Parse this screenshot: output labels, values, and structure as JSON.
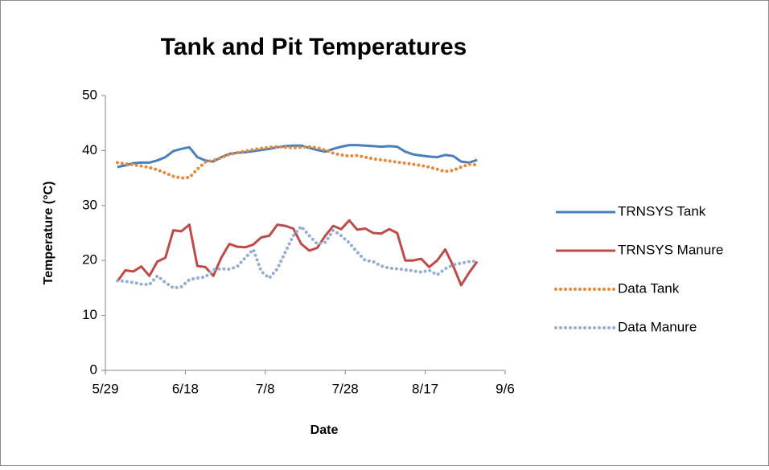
{
  "chart_data": {
    "type": "line",
    "title": "Tank and Pit Temperatures",
    "x_label": "Date",
    "y_label": "Temperature (°C)",
    "x": [
      "6/1",
      "6/3",
      "6/5",
      "6/7",
      "6/9",
      "6/11",
      "6/13",
      "6/15",
      "6/17",
      "6/19",
      "6/21",
      "6/23",
      "6/25",
      "6/27",
      "6/29",
      "7/1",
      "7/3",
      "7/5",
      "7/7",
      "7/9",
      "7/11",
      "7/13",
      "7/15",
      "7/17",
      "7/19",
      "7/21",
      "7/23",
      "7/25",
      "7/27",
      "7/29",
      "7/31",
      "8/2",
      "8/4",
      "8/6",
      "8/8",
      "8/10",
      "8/12",
      "8/14",
      "8/16",
      "8/18",
      "8/20",
      "8/22",
      "8/24",
      "8/26",
      "8/28",
      "8/30"
    ],
    "series": [
      {
        "name": "TRNSYS Tank",
        "color": "#4a7ebb",
        "style": "solid",
        "values": [
          37,
          37.3,
          37.7,
          37.8,
          37.8,
          38.2,
          38.8,
          39.9,
          40.3,
          40.6,
          38.8,
          38.2,
          38,
          38.8,
          39.4,
          39.6,
          39.7,
          39.9,
          40.1,
          40.3,
          40.6,
          40.8,
          40.9,
          40.9,
          40.5,
          40.1,
          39.8,
          40.3,
          40.7,
          41,
          41,
          40.9,
          40.8,
          40.7,
          40.8,
          40.7,
          39.8,
          39.3,
          39.1,
          38.9,
          38.8,
          39.2,
          39,
          38,
          37.8,
          38.3
        ]
      },
      {
        "name": "TRNSYS Manure",
        "color": "#be4b48",
        "style": "solid",
        "values": [
          16.2,
          18.2,
          18,
          18.9,
          17.2,
          19.8,
          20.5,
          25.5,
          25.3,
          26.5,
          19,
          18.8,
          17.2,
          20.5,
          23,
          22.5,
          22.4,
          22.9,
          24.2,
          24.5,
          26.5,
          26.3,
          25.8,
          23,
          21.8,
          22.3,
          24.5,
          26.3,
          25.7,
          27.3,
          25.6,
          25.8,
          25,
          24.9,
          25.7,
          25,
          20,
          20,
          20.3,
          18.8,
          20,
          22,
          19,
          15.5,
          17.8,
          19.8
        ]
      },
      {
        "name": "Data Tank",
        "color": "#e8883a",
        "style": "dotted",
        "values": [
          37.8,
          37.6,
          37.4,
          37.2,
          36.9,
          36.5,
          35.9,
          35.3,
          35,
          35.1,
          36.6,
          37.9,
          38.2,
          38.7,
          39.3,
          39.6,
          39.9,
          40.2,
          40.4,
          40.6,
          40.7,
          40.6,
          40.5,
          40.6,
          40.7,
          40.5,
          40.1,
          39.5,
          39.2,
          39,
          39.1,
          38.8,
          38.5,
          38.3,
          38.1,
          37.9,
          37.7,
          37.5,
          37.3,
          37,
          36.6,
          36.2,
          36.4,
          37,
          37.5,
          37.4
        ]
      },
      {
        "name": "Data Manure",
        "color": "#95add4",
        "style": "dotted",
        "values": [
          16.3,
          16.2,
          16,
          15.7,
          15.6,
          17.2,
          16,
          15,
          15.2,
          16.5,
          16.8,
          17,
          18.3,
          18.5,
          18.4,
          18.9,
          20.5,
          22,
          18,
          16.8,
          18.5,
          21.5,
          24.5,
          26.2,
          24.5,
          23,
          23.3,
          25.5,
          24.5,
          23.2,
          21.5,
          20,
          19.8,
          19,
          18.6,
          18.5,
          18.3,
          18.1,
          17.9,
          18.2,
          17.4,
          18.5,
          19.2,
          19.5,
          19.8,
          19.9
        ]
      }
    ],
    "xlim": [
      "5/29",
      "9/6"
    ],
    "xticks": [
      "5/29",
      "6/18",
      "7/8",
      "7/28",
      "8/17",
      "9/6"
    ],
    "ylim": [
      0,
      50
    ],
    "yticks": [
      0,
      10,
      20,
      30,
      40,
      50
    ],
    "grid": false,
    "legend": "right"
  }
}
